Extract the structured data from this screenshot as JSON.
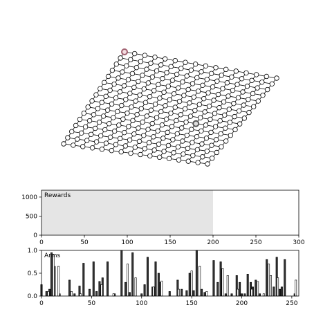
{
  "chart_data": [
    {
      "type": "span",
      "label": "Rewards",
      "span": [
        0,
        200
      ],
      "color": "#e5e5e5",
      "xlim": [
        0,
        300
      ],
      "xticks": [
        0,
        50,
        100,
        150,
        200,
        250,
        300
      ],
      "ylim": [
        0,
        1180
      ],
      "yticks": [
        0,
        500,
        1000
      ]
    },
    {
      "type": "bar",
      "label": "Arms",
      "xlim": [
        0,
        257
      ],
      "xticks": [
        0,
        50,
        100,
        150,
        200,
        250
      ],
      "ylim": [
        0,
        1.0
      ],
      "yticks": [
        {
          "value": 0,
          "label": "0.0"
        },
        {
          "value": 0.5,
          "label": "0.5"
        },
        {
          "value": 1.0,
          "label": "1.0"
        }
      ],
      "series": [
        {
          "color": "#333333",
          "x": [
            0,
            5,
            8,
            10,
            13,
            18,
            28,
            33,
            38,
            42,
            48,
            52,
            55,
            58,
            61,
            66,
            73,
            80,
            84,
            88,
            91,
            100,
            103,
            106,
            111,
            114,
            117,
            119,
            128,
            136,
            140,
            145,
            148,
            152,
            155,
            160,
            163,
            172,
            176,
            179,
            184,
            190,
            195,
            198,
            200,
            203,
            206,
            209,
            211,
            214,
            218,
            225,
            232,
            235,
            238,
            240,
            243,
            253
          ],
          "values": [
            0.25,
            0.1,
            0.15,
            0.95,
            0.65,
            0.05,
            0.35,
            0.05,
            0.22,
            0.72,
            0.15,
            0.75,
            0.1,
            0.32,
            0.4,
            0.75,
            0.05,
            1.0,
            0.3,
            0.08,
            0.95,
            0.05,
            0.25,
            0.85,
            0.2,
            0.75,
            0.5,
            0.3,
            0.1,
            0.35,
            0.15,
            0.12,
            0.5,
            0.12,
            1.0,
            0.15,
            0.08,
            0.78,
            0.3,
            0.75,
            0.05,
            0.05,
            0.45,
            0.3,
            0.05,
            0.05,
            0.48,
            0.3,
            0.2,
            0.35,
            0.05,
            0.8,
            0.2,
            0.85,
            0.15,
            0.2,
            0.8,
            0.05
          ]
        },
        {
          "color": "#ffffff",
          "x": [
            7,
            12,
            17,
            30,
            39,
            60,
            72,
            86,
            94,
            112,
            120,
            137,
            150,
            158,
            165,
            181,
            186,
            196,
            210,
            216,
            222,
            227,
            229,
            236,
            254
          ],
          "values": [
            0.1,
            0.9,
            0.65,
            0.1,
            0.05,
            0.25,
            0.05,
            0.7,
            0.4,
            0.2,
            0.33,
            0.15,
            0.55,
            0.65,
            0.1,
            0.6,
            0.45,
            0.15,
            0.15,
            0.32,
            0.05,
            0.7,
            0.45,
            0.4,
            0.35
          ]
        }
      ]
    }
  ]
}
